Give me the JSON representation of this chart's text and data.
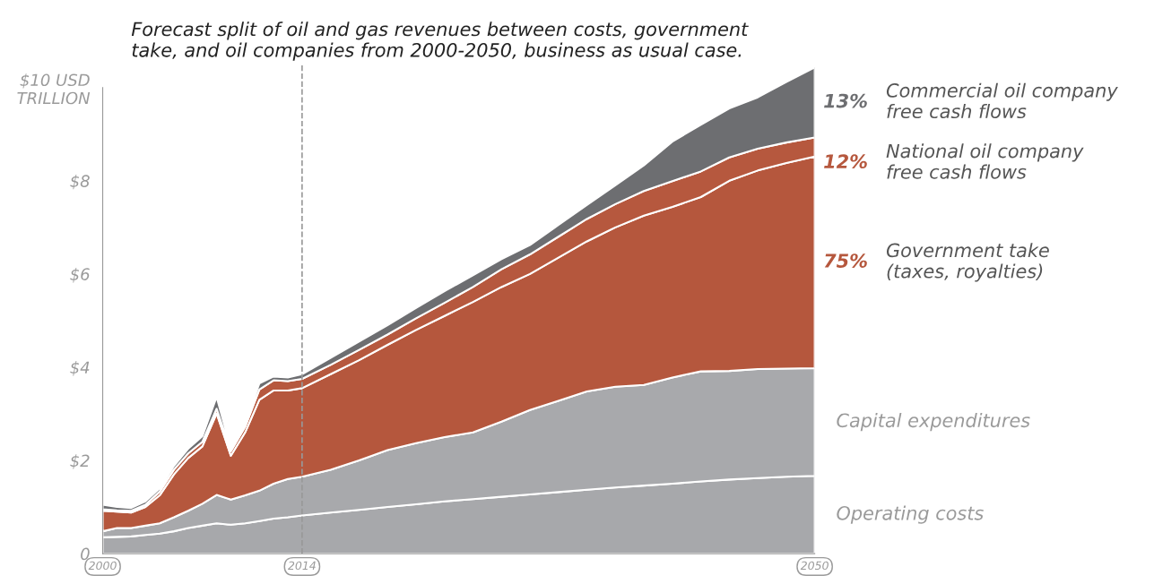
{
  "chart_data": {
    "type": "area",
    "stacked": true,
    "title": "Forecast split of oil and gas revenues between costs, government\ntake, and oil companies from 2000-2050, business as usual case.",
    "x": [
      2000,
      2001,
      2002,
      2003,
      2004,
      2005,
      2006,
      2007,
      2008,
      2009,
      2010,
      2011,
      2012,
      2013,
      2014,
      2016,
      2018,
      2020,
      2022,
      2024,
      2026,
      2028,
      2030,
      2032,
      2034,
      2036,
      2038,
      2040,
      2042,
      2044,
      2046,
      2048,
      2050
    ],
    "series": [
      {
        "name": "Operating costs",
        "color": "#a7a8ab",
        "values": [
          0.35,
          0.36,
          0.37,
          0.4,
          0.43,
          0.48,
          0.55,
          0.6,
          0.65,
          0.62,
          0.65,
          0.7,
          0.75,
          0.78,
          0.82,
          0.88,
          0.94,
          1.0,
          1.06,
          1.12,
          1.17,
          1.22,
          1.27,
          1.32,
          1.37,
          1.42,
          1.46,
          1.5,
          1.55,
          1.59,
          1.62,
          1.65,
          1.67
        ]
      },
      {
        "name": "Capital expenditures",
        "color": "#a8a9ac",
        "values": [
          0.13,
          0.19,
          0.18,
          0.2,
          0.22,
          0.3,
          0.37,
          0.47,
          0.61,
          0.54,
          0.6,
          0.65,
          0.75,
          0.82,
          0.83,
          0.92,
          1.06,
          1.22,
          1.31,
          1.38,
          1.43,
          1.61,
          1.81,
          1.96,
          2.11,
          2.16,
          2.16,
          2.28,
          2.36,
          2.33,
          2.34,
          2.32,
          2.31
        ]
      },
      {
        "name": "Government take\n(taxes, royalties)",
        "color": "#b5573d",
        "values": [
          0.44,
          0.35,
          0.33,
          0.4,
          0.6,
          0.92,
          1.13,
          1.23,
          1.75,
          0.94,
          1.35,
          1.95,
          2.0,
          1.9,
          1.9,
          2.05,
          2.15,
          2.26,
          2.43,
          2.6,
          2.8,
          2.89,
          2.92,
          3.07,
          3.22,
          3.42,
          3.63,
          3.66,
          3.74,
          4.08,
          4.26,
          4.41,
          4.54
        ]
      },
      {
        "name": "National oil company\nfree cash flows",
        "color": "#b6583e",
        "values": [
          0.03,
          0.03,
          0.04,
          0.05,
          0.08,
          0.1,
          0.1,
          0.1,
          0.1,
          0.1,
          0.12,
          0.22,
          0.22,
          0.2,
          0.2,
          0.2,
          0.22,
          0.22,
          0.25,
          0.28,
          0.32,
          0.38,
          0.42,
          0.45,
          0.48,
          0.5,
          0.53,
          0.55,
          0.55,
          0.5,
          0.47,
          0.44,
          0.41
        ]
      },
      {
        "name": "Commercial oil company\nfree cash flows",
        "color": "#6d6e71",
        "values": [
          0.1,
          0.07,
          0.06,
          0.07,
          0.07,
          0.08,
          0.1,
          0.12,
          0.25,
          0.05,
          0.08,
          0.13,
          0.08,
          0.08,
          0.1,
          0.15,
          0.18,
          0.2,
          0.22,
          0.25,
          0.25,
          0.22,
          0.2,
          0.25,
          0.3,
          0.4,
          0.55,
          0.85,
          1.0,
          1.05,
          1.1,
          1.3,
          1.5
        ]
      }
    ],
    "annotations": [
      "13%",
      "12%",
      "75%"
    ],
    "xlim": [
      2000,
      2050
    ],
    "xticks": [
      2000,
      2014,
      2050
    ],
    "ylim": [
      0,
      10.5
    ],
    "yticks": [
      {
        "value": 0,
        "label": "0"
      },
      {
        "value": 2,
        "label": "$2"
      },
      {
        "value": 4,
        "label": "$4"
      },
      {
        "value": 6,
        "label": "$6"
      },
      {
        "value": 8,
        "label": "$8"
      },
      {
        "value": 10,
        "label": "$10 USD\nTRILLION"
      }
    ],
    "ref_lines": [
      {
        "axis": "x",
        "value": 2014,
        "color": "#999999",
        "line_style": "dashed"
      }
    ],
    "grid": false,
    "legend": false
  }
}
